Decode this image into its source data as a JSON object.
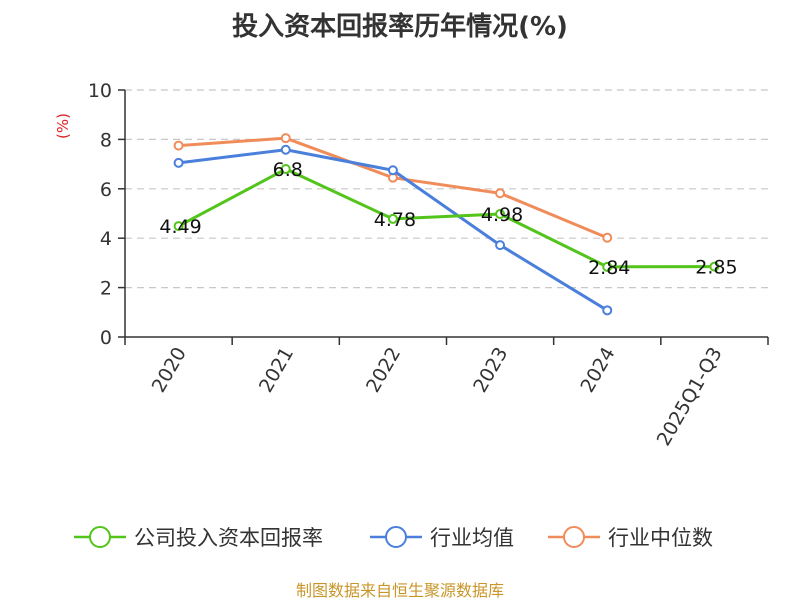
{
  "chart_data": {
    "type": "line",
    "title": "投入资本回报率历年情况(%)",
    "ylabel": "(%)",
    "xlabel": "",
    "ylim": [
      0,
      10
    ],
    "yticks": [
      0,
      2,
      4,
      6,
      8,
      10
    ],
    "grid": true,
    "legend_position": "bottom",
    "categories": [
      "2020",
      "2021",
      "2022",
      "2023",
      "2024",
      "2025Q1-Q3"
    ],
    "series": [
      {
        "name": "公司投入资本回报率",
        "color": "#52c41a",
        "values": [
          4.49,
          6.8,
          4.78,
          4.98,
          2.84,
          2.85
        ],
        "labels": [
          "4.49",
          "6.8",
          "4.78",
          "4.98",
          "2.84",
          "2.85"
        ]
      },
      {
        "name": "行业均值",
        "color": "#4a7fdc",
        "values": [
          7.05,
          7.58,
          6.75,
          3.72,
          1.08,
          null
        ]
      },
      {
        "name": "行业中位数",
        "color": "#f08c5a",
        "values": [
          7.75,
          8.05,
          6.45,
          5.82,
          4.02,
          null
        ]
      }
    ]
  },
  "source": "制图数据来自恒生聚源数据库"
}
